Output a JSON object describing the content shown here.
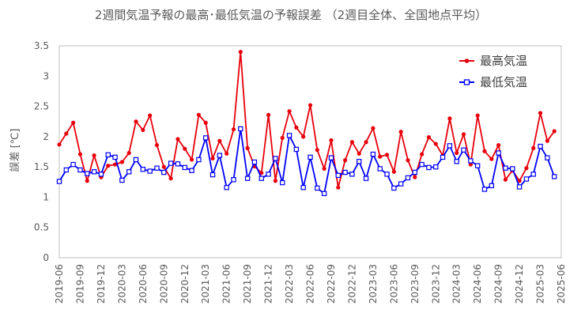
{
  "chart_data": {
    "type": "line",
    "title": "2週間気温予報の最高･最低気温の予報誤差 （2週目全体、全国地点平均）",
    "ylabel": "誤差 [℃]",
    "xlabel": "",
    "ylim": [
      0,
      3.5
    ],
    "yticks": [
      "0",
      "0.5",
      "1",
      "1.5",
      "2",
      "2.5",
      "3",
      "3.5"
    ],
    "x_tick_labels": [
      "2019-06",
      "2019-09",
      "2019-12",
      "2020-03",
      "2020-06",
      "2020-09",
      "2020-12",
      "2021-03",
      "2021-06",
      "2021-09",
      "2021-12",
      "2022-03",
      "2022-06",
      "2022-09",
      "2022-12",
      "2023-03",
      "2023-06",
      "2023-09",
      "2023-12",
      "2024-03",
      "2024-06",
      "2024-09",
      "2024-12",
      "2025-03",
      "2025-06"
    ],
    "x": [
      "2019-06",
      "2019-07",
      "2019-08",
      "2019-09",
      "2019-10",
      "2019-11",
      "2019-12",
      "2020-01",
      "2020-02",
      "2020-03",
      "2020-04",
      "2020-05",
      "2020-06",
      "2020-07",
      "2020-08",
      "2020-09",
      "2020-10",
      "2020-11",
      "2020-12",
      "2021-01",
      "2021-02",
      "2021-03",
      "2021-04",
      "2021-05",
      "2021-06",
      "2021-07",
      "2021-08",
      "2021-09",
      "2021-10",
      "2021-11",
      "2021-12",
      "2022-01",
      "2022-02",
      "2022-03",
      "2022-04",
      "2022-05",
      "2022-06",
      "2022-07",
      "2022-08",
      "2022-09",
      "2022-10",
      "2022-11",
      "2022-12",
      "2023-01",
      "2023-02",
      "2023-03",
      "2023-04",
      "2023-05",
      "2023-06",
      "2023-07",
      "2023-08",
      "2023-09",
      "2023-10",
      "2023-11",
      "2023-12",
      "2024-01",
      "2024-02",
      "2024-03",
      "2024-04",
      "2024-05",
      "2024-06",
      "2024-07",
      "2024-08",
      "2024-09",
      "2024-10",
      "2024-11",
      "2024-12",
      "2025-01",
      "2025-02",
      "2025-03",
      "2025-04",
      "2025-05"
    ],
    "series": [
      {
        "name": "最高気温",
        "color": "#e8000b",
        "marker": "circle",
        "values": [
          1.87,
          2.05,
          2.23,
          1.71,
          1.27,
          1.69,
          1.33,
          1.52,
          1.54,
          1.58,
          1.73,
          2.25,
          2.11,
          2.35,
          1.86,
          1.5,
          1.31,
          1.96,
          1.8,
          1.62,
          2.36,
          2.23,
          1.64,
          1.93,
          1.72,
          2.12,
          3.4,
          1.81,
          1.51,
          1.4,
          2.36,
          1.27,
          1.98,
          2.42,
          2.15,
          2.0,
          2.52,
          1.78,
          1.47,
          1.94,
          1.16,
          1.61,
          1.91,
          1.72,
          1.91,
          2.14,
          1.67,
          1.7,
          1.42,
          2.08,
          1.61,
          1.33,
          1.71,
          1.99,
          1.88,
          1.69,
          2.3,
          1.73,
          2.04,
          1.54,
          2.35,
          1.76,
          1.63,
          1.86,
          1.29,
          1.44,
          1.27,
          1.48,
          1.81,
          2.39,
          1.93,
          2.09
        ]
      },
      {
        "name": "最低気温",
        "color": "#0000ff",
        "marker": "square",
        "values": [
          1.26,
          1.45,
          1.54,
          1.45,
          1.39,
          1.42,
          1.38,
          1.7,
          1.66,
          1.28,
          1.42,
          1.62,
          1.46,
          1.43,
          1.48,
          1.41,
          1.56,
          1.55,
          1.49,
          1.44,
          1.62,
          1.98,
          1.37,
          1.69,
          1.16,
          1.29,
          2.13,
          1.31,
          1.58,
          1.31,
          1.38,
          1.64,
          1.24,
          2.02,
          1.79,
          1.16,
          1.66,
          1.15,
          1.06,
          1.65,
          1.36,
          1.41,
          1.38,
          1.59,
          1.31,
          1.71,
          1.47,
          1.38,
          1.15,
          1.22,
          1.32,
          1.41,
          1.54,
          1.49,
          1.5,
          1.66,
          1.85,
          1.59,
          1.78,
          1.6,
          1.52,
          1.13,
          1.19,
          1.73,
          1.48,
          1.47,
          1.17,
          1.3,
          1.38,
          1.84,
          1.65,
          1.34
        ]
      }
    ],
    "legend": {
      "placement": "top-right"
    },
    "grid": false
  }
}
